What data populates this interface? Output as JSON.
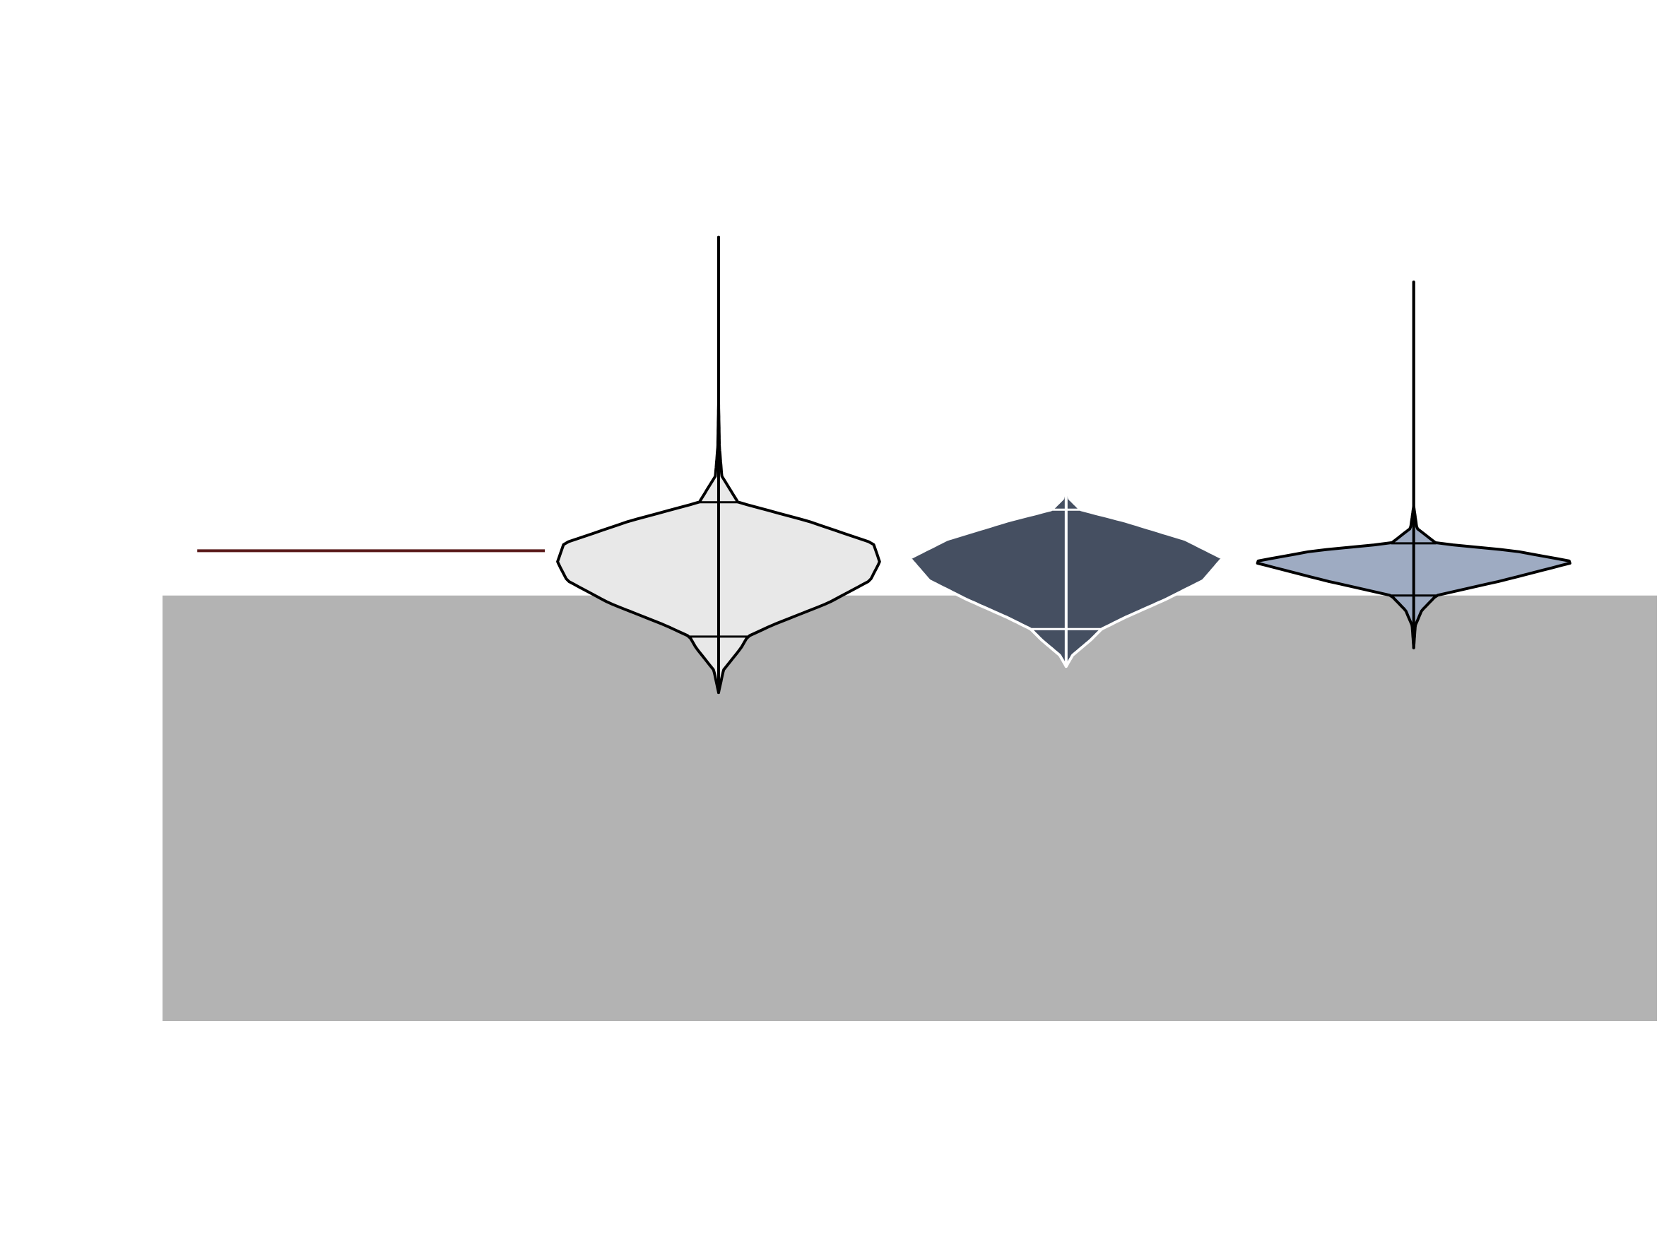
{
  "chart_data": {
    "type": "violin",
    "title": "",
    "xlabel": "",
    "ylabel": "",
    "ylim": [
      -8,
      8
    ],
    "grid": false,
    "legend": "none",
    "shaded_band": {
      "y_from": -8,
      "y_to": 0.4,
      "color": "#b3b3b3"
    },
    "reference_line": {
      "y": 1.0,
      "x_from": -0.5,
      "x_to": 0.5,
      "color": "#5a1a1a"
    },
    "violins": [
      {
        "position": 1,
        "fill": "#e8e8e8",
        "stroke": "#000000",
        "min": -0.9,
        "max": 5.2,
        "q1": -0.15,
        "q3": 1.65,
        "profile": [
          [
            -0.9,
            0.0
          ],
          [
            -0.6,
            0.03
          ],
          [
            -0.3,
            0.14
          ],
          [
            -0.15,
            0.18
          ],
          [
            0.0,
            0.33
          ],
          [
            0.3,
            0.68
          ],
          [
            0.6,
            0.94
          ],
          [
            0.85,
            1.0
          ],
          [
            1.1,
            0.96
          ],
          [
            1.4,
            0.55
          ],
          [
            1.65,
            0.12
          ],
          [
            2.0,
            0.02
          ],
          [
            2.4,
            0.005
          ],
          [
            3.0,
            0.0
          ],
          [
            5.2,
            0.0
          ]
        ]
      },
      {
        "position": 2,
        "fill": "#454f61",
        "stroke": "#ffffff",
        "min": -0.55,
        "max": 1.9,
        "q1": -0.05,
        "q3": 1.55,
        "profile": [
          [
            -0.55,
            0.0
          ],
          [
            -0.4,
            0.04
          ],
          [
            -0.2,
            0.15
          ],
          [
            -0.05,
            0.22
          ],
          [
            0.1,
            0.36
          ],
          [
            0.35,
            0.62
          ],
          [
            0.6,
            0.85
          ],
          [
            0.9,
            0.97
          ],
          [
            1.15,
            0.74
          ],
          [
            1.4,
            0.36
          ],
          [
            1.55,
            0.09
          ],
          [
            1.7,
            0.02
          ],
          [
            1.9,
            0.0
          ]
        ]
      },
      {
        "position": 3,
        "fill": "#9eabc2",
        "stroke": "#000000",
        "min": -0.3,
        "max": 4.6,
        "q1": 0.4,
        "q3": 1.1,
        "profile": [
          [
            -0.3,
            0.0
          ],
          [
            0.0,
            0.01
          ],
          [
            0.2,
            0.05
          ],
          [
            0.4,
            0.14
          ],
          [
            0.6,
            0.55
          ],
          [
            0.85,
            1.0
          ],
          [
            1.0,
            0.62
          ],
          [
            1.1,
            0.14
          ],
          [
            1.3,
            0.02
          ],
          [
            1.6,
            0.0
          ],
          [
            4.6,
            0.0
          ]
        ]
      }
    ]
  }
}
